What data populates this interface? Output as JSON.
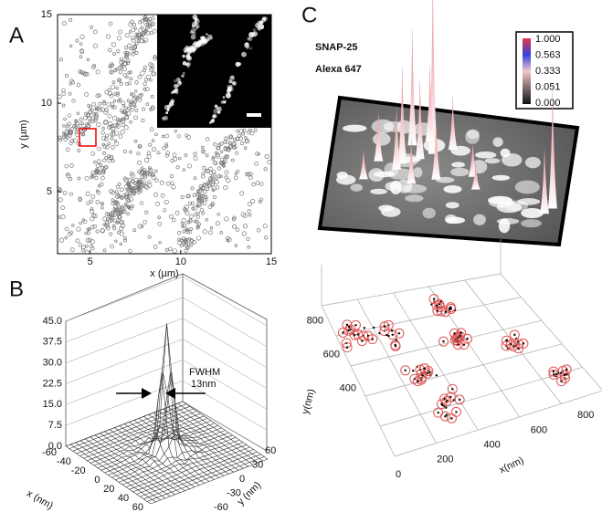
{
  "panels": {
    "a": {
      "label": "A",
      "x_axis": {
        "title": "x (µm)",
        "lim": [
          3.2,
          15
        ],
        "ticks": [
          5,
          10,
          15
        ]
      },
      "y_axis": {
        "title": "y (µm)",
        "lim": [
          1.5,
          15
        ],
        "ticks": [
          5,
          10,
          15
        ]
      }
    },
    "b": {
      "label": "B",
      "annotation": [
        "FWHM",
        "13nm"
      ],
      "z_axis": {
        "ticks": [
          {
            "value": 0,
            "label": "0.0"
          },
          {
            "value": 7.5,
            "label": "7.5"
          },
          {
            "value": 15,
            "label": "15.0"
          },
          {
            "value": 22.5,
            "label": "22.5"
          },
          {
            "value": 30,
            "label": "30.0"
          },
          {
            "value": 37.5,
            "label": "37.5"
          },
          {
            "value": 45,
            "label": "45.0"
          }
        ]
      },
      "x_axis": {
        "title": "x (nm)",
        "ticks": [
          -60,
          -40,
          -20,
          0,
          20,
          40,
          60
        ]
      },
      "y_axis": {
        "title": "y (nm)",
        "ticks": [
          60,
          30,
          0,
          -30,
          -60
        ]
      }
    },
    "c": {
      "label": "C",
      "title": [
        "SNAP-25",
        "Alexa 647"
      ],
      "colorbar_ticks": [
        {
          "value": 1,
          "label": "1.000"
        },
        {
          "value": 0.563,
          "label": "0.563"
        },
        {
          "value": 0.333,
          "label": "0.333"
        },
        {
          "value": 0.051,
          "label": "0.051"
        },
        {
          "value": 0,
          "label": "0.000"
        }
      ],
      "x_axis": {
        "title": "x(nm)",
        "ticks": [
          0,
          200,
          400,
          600,
          800
        ]
      },
      "y_axis": {
        "title": "y(nm)",
        "ticks": [
          400,
          600,
          800
        ]
      }
    }
  }
}
